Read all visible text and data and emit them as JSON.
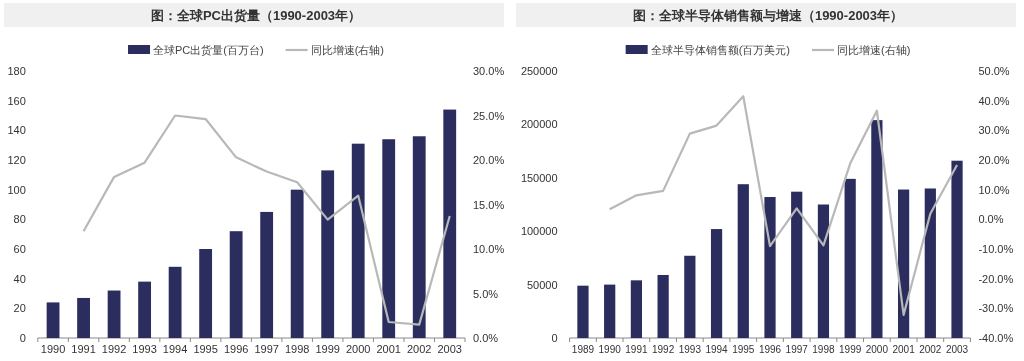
{
  "chart_data": [
    {
      "type": "bar",
      "title": "图：全球PC出货量（1990-2003年）",
      "legend": "top",
      "categories": [
        "1990",
        "1991",
        "1992",
        "1993",
        "1994",
        "1995",
        "1996",
        "1997",
        "1998",
        "1999",
        "2000",
        "2001",
        "2002",
        "2003"
      ],
      "series": [
        {
          "name": "全球PC出货量(百万台)",
          "color": "#2b2d5f",
          "values": [
            24,
            27,
            32,
            38,
            48,
            60,
            72,
            85,
            100,
            113,
            131,
            134,
            136,
            154
          ]
        },
        {
          "name": "同比增速(右轴)",
          "type": "line",
          "axis": "y2",
          "color": "#b8b8b8",
          "values": [
            null,
            12.0,
            18.1,
            19.7,
            25.0,
            24.6,
            20.3,
            18.7,
            17.5,
            13.3,
            16.0,
            1.8,
            1.5,
            13.7
          ]
        }
      ],
      "ylim": [
        0,
        180
      ],
      "yticks": [
        0,
        20,
        40,
        60,
        80,
        100,
        120,
        140,
        160,
        180
      ],
      "y2lim": [
        0,
        30
      ],
      "y2ticks": [
        {
          "value": 0,
          "label": "0.0%"
        },
        {
          "value": 5,
          "label": "5.0%"
        },
        {
          "value": 10,
          "label": "10.0%"
        },
        {
          "value": 15,
          "label": "15.0%"
        },
        {
          "value": 20,
          "label": "20.0%"
        },
        {
          "value": 25,
          "label": "25.0%"
        },
        {
          "value": 30,
          "label": "30.0%"
        }
      ]
    },
    {
      "type": "bar",
      "title": "图：全球半导体销售额与增速（1990-2003年）",
      "legend": "top",
      "categories": [
        "1989",
        "1990",
        "1991",
        "1992",
        "1993",
        "1994",
        "1995",
        "1996",
        "1997",
        "1998",
        "1999",
        "2000",
        "2001",
        "2002",
        "2003"
      ],
      "series": [
        {
          "name": "全球半导体销售额(百万美元)",
          "color": "#2b2d5f",
          "values": [
            49000,
            50000,
            54000,
            59000,
            77000,
            102000,
            144000,
            132000,
            137000,
            125000,
            149000,
            204000,
            139000,
            140000,
            166000
          ]
        },
        {
          "name": "同比增速(右轴)",
          "type": "line",
          "axis": "y2",
          "color": "#b8b8b8",
          "values": [
            null,
            3.4,
            8.1,
            9.6,
            28.9,
            31.6,
            41.5,
            -9.0,
            3.7,
            -8.8,
            18.8,
            36.6,
            -32.2,
            1.9,
            18.3
          ]
        }
      ],
      "ylim": [
        0,
        250000
      ],
      "yticks": [
        0,
        50000,
        100000,
        150000,
        200000,
        250000
      ],
      "y2lim": [
        -40,
        50
      ],
      "y2ticks": [
        {
          "value": -40,
          "label": "-40.0%"
        },
        {
          "value": -30,
          "label": "-30.0%"
        },
        {
          "value": -20,
          "label": "-20.0%"
        },
        {
          "value": -10,
          "label": "-10.0%"
        },
        {
          "value": 0,
          "label": "0.0%"
        },
        {
          "value": 10,
          "label": "10.0%"
        },
        {
          "value": 20,
          "label": "20.0%"
        },
        {
          "value": 30,
          "label": "30.0%"
        },
        {
          "value": 40,
          "label": "40.0%"
        },
        {
          "value": 50,
          "label": "50.0%"
        }
      ]
    }
  ]
}
